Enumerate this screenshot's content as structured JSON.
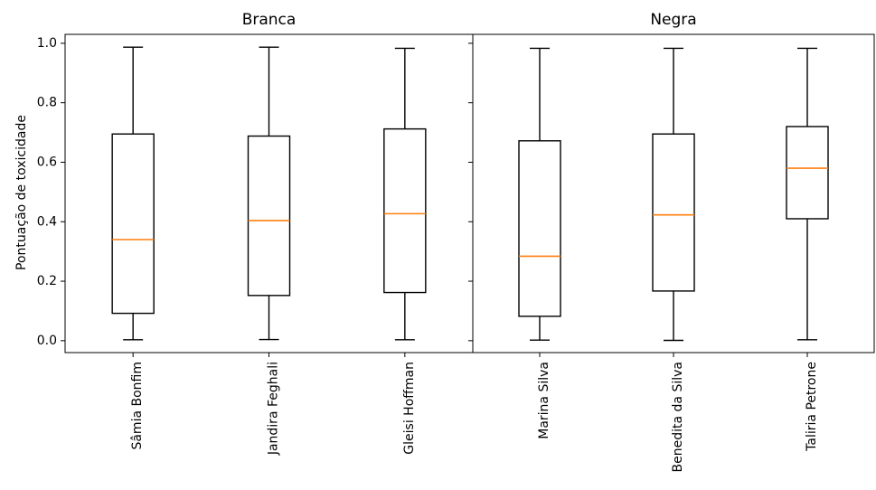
{
  "chart_data": {
    "type": "boxplot",
    "ylabel": "Pontuação de toxicidade",
    "ylim": [
      -0.04,
      1.03
    ],
    "yticks": [
      "0.0",
      "0.2",
      "0.4",
      "0.6",
      "0.8",
      "1.0"
    ],
    "colors": {
      "box": "#000000",
      "median": "#ff7f0e"
    },
    "panels": [
      {
        "title": "Branca",
        "categories": [
          "Sâmia Bonfim",
          "Jandira Feghali",
          "Gleisi Hoffman"
        ],
        "boxes": [
          {
            "whisker_low": 0.003,
            "q1": 0.092,
            "median": 0.34,
            "q3": 0.695,
            "whisker_high": 0.987
          },
          {
            "whisker_low": 0.004,
            "q1": 0.152,
            "median": 0.404,
            "q3": 0.688,
            "whisker_high": 0.987
          },
          {
            "whisker_low": 0.003,
            "q1": 0.162,
            "median": 0.427,
            "q3": 0.712,
            "whisker_high": 0.983
          }
        ]
      },
      {
        "title": "Negra",
        "categories": [
          "Marina Silva",
          "Benedita da Silva",
          "Taliria Petrone"
        ],
        "boxes": [
          {
            "whisker_low": 0.002,
            "q1": 0.082,
            "median": 0.284,
            "q3": 0.672,
            "whisker_high": 0.983
          },
          {
            "whisker_low": 0.001,
            "q1": 0.167,
            "median": 0.423,
            "q3": 0.695,
            "whisker_high": 0.983
          },
          {
            "whisker_low": 0.003,
            "q1": 0.41,
            "median": 0.58,
            "q3": 0.72,
            "whisker_high": 0.983
          }
        ]
      }
    ]
  }
}
